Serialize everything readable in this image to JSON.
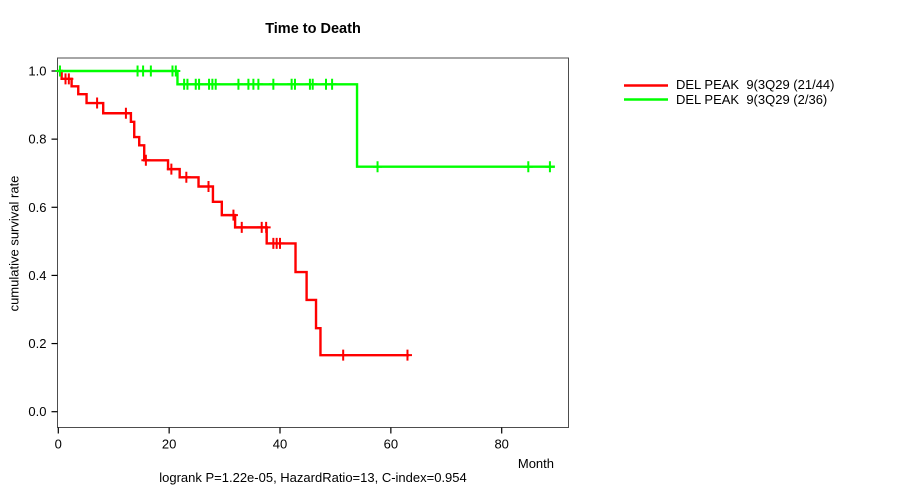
{
  "chart_data": {
    "type": "line",
    "subtype": "kaplan-meier-step-survival",
    "title": "Time to Death",
    "xlabel": "Month",
    "ylabel": "cumulative survival rate",
    "annotation": "logrank P=1.22e-05, HazardRatio=13, C-index=0.954",
    "xticks": [
      0,
      20,
      40,
      60,
      80
    ],
    "yticks": [
      0.0,
      0.2,
      0.4,
      0.6,
      0.8,
      1.0
    ],
    "xlim": [
      0,
      91
    ],
    "ylim": [
      0,
      1
    ],
    "grid": false,
    "legend_position": "right-outside",
    "series": [
      {
        "name": "DEL PEAK  9(3Q29 (21/44)",
        "color": "#ff0000",
        "steps": [
          [
            0,
            1.0
          ],
          [
            0.6,
            0.977
          ],
          [
            2.4,
            0.955
          ],
          [
            3.6,
            0.932
          ],
          [
            5.1,
            0.906
          ],
          [
            8.1,
            0.876
          ],
          [
            13.1,
            0.851
          ],
          [
            13.7,
            0.806
          ],
          [
            14.6,
            0.782
          ],
          [
            15.5,
            0.738
          ],
          [
            19.8,
            0.712
          ],
          [
            21.9,
            0.688
          ],
          [
            25.3,
            0.661
          ],
          [
            27.9,
            0.616
          ],
          [
            29.5,
            0.577
          ],
          [
            31.9,
            0.541
          ],
          [
            37.6,
            0.494
          ],
          [
            42.8,
            0.41
          ],
          [
            44.8,
            0.328
          ],
          [
            46.5,
            0.245
          ],
          [
            47.3,
            0.166
          ]
        ],
        "end_month": 63.3,
        "censor_marks": [
          [
            1.3,
            0.977
          ],
          [
            1.9,
            0.977
          ],
          [
            7.0,
            0.906
          ],
          [
            12.2,
            0.876
          ],
          [
            15.8,
            0.738
          ],
          [
            20.4,
            0.712
          ],
          [
            23.1,
            0.688
          ],
          [
            27.1,
            0.661
          ],
          [
            31.6,
            0.577
          ],
          [
            33.1,
            0.541
          ],
          [
            36.7,
            0.541
          ],
          [
            37.5,
            0.541
          ],
          [
            38.8,
            0.494
          ],
          [
            39.4,
            0.494
          ],
          [
            40.0,
            0.494
          ],
          [
            51.4,
            0.166
          ],
          [
            63.0,
            0.166
          ]
        ]
      },
      {
        "name": "DEL PEAK  9(3Q29 (2/36)",
        "color": "#00ff00",
        "steps": [
          [
            0,
            1.0
          ],
          [
            21.5,
            0.961
          ],
          [
            53.9,
            0.719
          ]
        ],
        "end_month": 89.6,
        "censor_marks": [
          [
            0.3,
            1.0
          ],
          [
            14.3,
            1.0
          ],
          [
            15.3,
            1.0
          ],
          [
            16.7,
            1.0
          ],
          [
            20.6,
            1.0
          ],
          [
            21.2,
            1.0
          ],
          [
            22.7,
            0.961
          ],
          [
            23.3,
            0.961
          ],
          [
            24.8,
            0.961
          ],
          [
            25.4,
            0.961
          ],
          [
            27.2,
            0.961
          ],
          [
            27.8,
            0.961
          ],
          [
            28.4,
            0.961
          ],
          [
            32.5,
            0.961
          ],
          [
            34.3,
            0.961
          ],
          [
            35.2,
            0.961
          ],
          [
            36.1,
            0.961
          ],
          [
            38.8,
            0.961
          ],
          [
            42.1,
            0.961
          ],
          [
            42.7,
            0.961
          ],
          [
            45.4,
            0.961
          ],
          [
            45.9,
            0.961
          ],
          [
            48.3,
            0.961
          ],
          [
            49.4,
            0.961
          ],
          [
            57.6,
            0.719
          ],
          [
            84.8,
            0.719
          ],
          [
            88.7,
            0.719
          ]
        ]
      }
    ]
  }
}
